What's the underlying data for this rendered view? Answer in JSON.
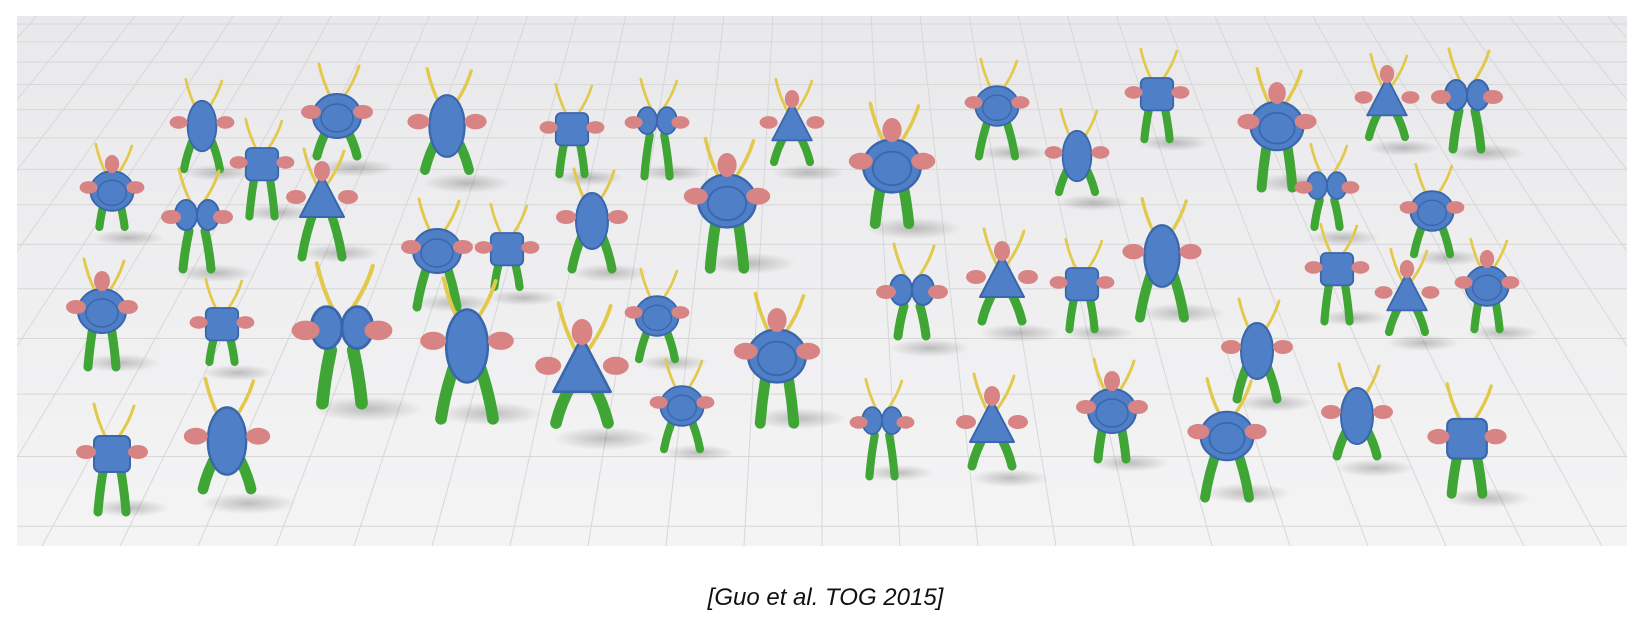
{
  "caption": "[Guo et al. TOG 2015]",
  "colors": {
    "body": "#4f7fc6",
    "body_dark": "#3a66ab",
    "head_parts": "#d88484",
    "legs": "#3fa535",
    "antennae": "#e2c94c",
    "floor": "#f4f4f5",
    "grid": "#d7d7d9"
  },
  "icons": {
    "scene": "collection-of-3d-creature-models"
  }
}
